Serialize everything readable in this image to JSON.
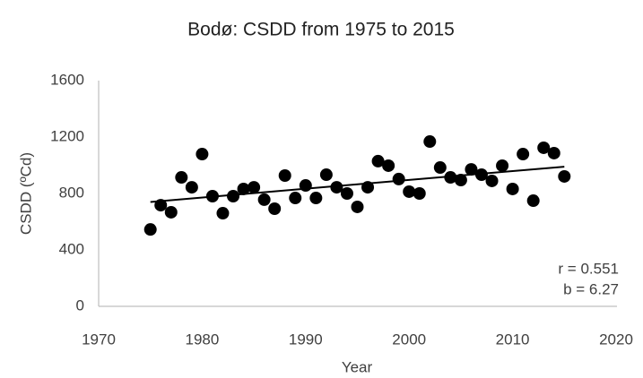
{
  "chart_data": {
    "type": "scatter",
    "title": "Bodø: CSDD from 1975 to 2015",
    "x_label": "Year",
    "y_label": "CSDD (ºCd)",
    "x": [
      1975,
      1976,
      1977,
      1978,
      1979,
      1980,
      1981,
      1982,
      1983,
      1984,
      1985,
      1986,
      1987,
      1988,
      1989,
      1990,
      1991,
      1992,
      1993,
      1994,
      1995,
      1996,
      1997,
      1998,
      1999,
      2000,
      2001,
      2002,
      2003,
      2004,
      2005,
      2006,
      2007,
      2008,
      2009,
      2010,
      2011,
      2012,
      2013,
      2014,
      2015
    ],
    "series": [
      {
        "name": "CSDD",
        "color": "#000000",
        "values": [
          545,
          717,
          667,
          914,
          844,
          1079,
          781,
          660,
          781,
          832,
          844,
          756,
          692,
          927,
          768,
          857,
          768,
          933,
          844,
          800,
          705,
          844,
          1029,
          997,
          902,
          813,
          800,
          1168,
          984,
          914,
          895,
          971,
          933,
          889,
          997,
          832,
          1079,
          749,
          1124,
          1086,
          921
        ]
      }
    ],
    "trend": {
      "x": [
        1975,
        2015
      ],
      "values": [
        740,
        990
      ],
      "color": "#000000"
    },
    "annotations": [
      "r = 0.551",
      "b = 6.27"
    ],
    "xlim": [
      1970,
      2020
    ],
    "xticks": [
      1970,
      1980,
      1990,
      2000,
      2010,
      2020
    ],
    "ylim": [
      0,
      1600
    ],
    "yticks": [
      0,
      400,
      800,
      1200,
      1600
    ],
    "grid": false
  }
}
